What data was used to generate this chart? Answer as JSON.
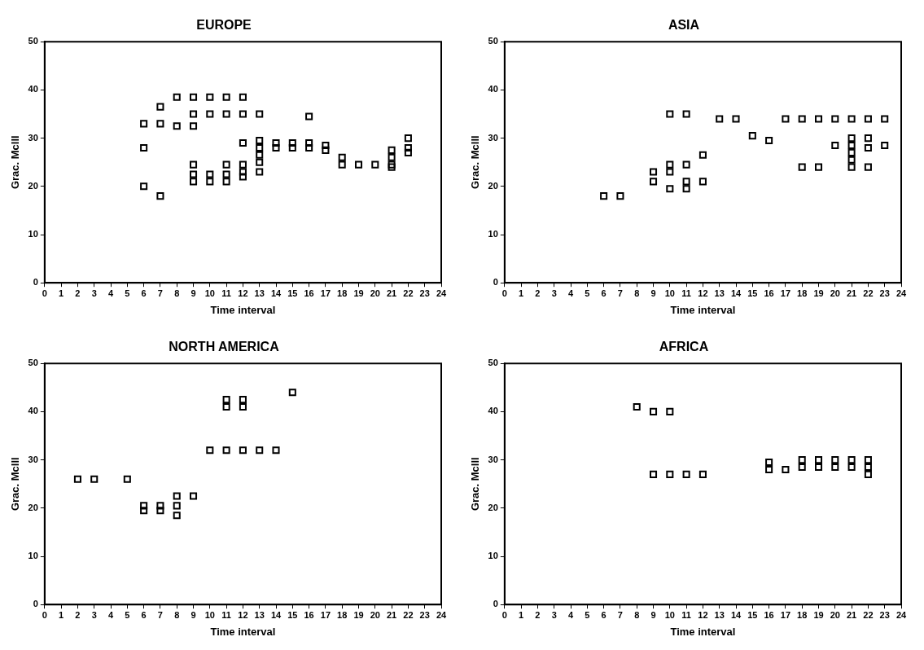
{
  "chart_data": [
    {
      "type": "scatter",
      "title": "EUROPE",
      "xlabel": "Time interval",
      "ylabel": "Grac. Mclll",
      "marker": "square",
      "grid": false,
      "legend": false,
      "xlim": [
        0,
        24
      ],
      "xticks": [
        0,
        1,
        2,
        3,
        4,
        5,
        6,
        7,
        8,
        9,
        10,
        11,
        12,
        13,
        14,
        15,
        16,
        17,
        18,
        19,
        20,
        21,
        22,
        23,
        24
      ],
      "ylim": [
        0,
        50
      ],
      "yticks": [
        0,
        10,
        20,
        30,
        40,
        50
      ],
      "series": [
        {
          "color": "#000000",
          "x": [
            6,
            6,
            6,
            7,
            7,
            7,
            8,
            8,
            9,
            9,
            9,
            9,
            9,
            9,
            10,
            10,
            10,
            10,
            11,
            11,
            11,
            11,
            11,
            12,
            12,
            12,
            12,
            12,
            12,
            13,
            13,
            13,
            13,
            13,
            13,
            14,
            14,
            15,
            15,
            16,
            16,
            16,
            17,
            17,
            18,
            18,
            19,
            20,
            21,
            21,
            21,
            21,
            22,
            22,
            22
          ],
          "values": [
            33,
            28,
            20,
            36.5,
            33,
            18,
            38.5,
            32.5,
            38.5,
            35,
            32.5,
            24.5,
            22.5,
            21,
            38.5,
            35,
            22.5,
            21,
            38.5,
            35,
            24.5,
            22.5,
            21,
            38.5,
            35,
            29,
            24.5,
            23,
            22,
            35,
            29.5,
            28,
            26.5,
            25,
            23,
            29,
            28,
            29,
            28,
            34.5,
            29,
            28,
            28.5,
            27.5,
            26,
            24.5,
            24.5,
            24.5,
            27.5,
            26,
            24.5,
            24,
            30,
            28,
            27
          ]
        }
      ]
    },
    {
      "type": "scatter",
      "title": "ASIA",
      "xlabel": "Time interval",
      "ylabel": "Grac. Mclll",
      "marker": "square",
      "grid": false,
      "legend": false,
      "xlim": [
        0,
        24
      ],
      "xticks": [
        0,
        1,
        2,
        3,
        4,
        5,
        6,
        7,
        8,
        9,
        10,
        11,
        12,
        13,
        14,
        15,
        16,
        17,
        18,
        19,
        20,
        21,
        22,
        23,
        24
      ],
      "ylim": [
        0,
        50
      ],
      "yticks": [
        0,
        10,
        20,
        30,
        40,
        50
      ],
      "series": [
        {
          "color": "#000000",
          "x": [
            6,
            7,
            9,
            9,
            10,
            10,
            10,
            10,
            11,
            11,
            11,
            11,
            12,
            12,
            13,
            14,
            15,
            16,
            17,
            18,
            18,
            19,
            19,
            20,
            20,
            21,
            21,
            21,
            21,
            21,
            21,
            22,
            22,
            22,
            22,
            23,
            23
          ],
          "values": [
            18,
            18,
            23,
            21,
            35,
            24.5,
            23,
            19.5,
            35,
            24.5,
            21,
            19.5,
            26.5,
            21,
            34,
            34,
            30.5,
            29.5,
            34,
            34,
            24,
            34,
            24,
            34,
            28.5,
            34,
            30,
            28.5,
            27,
            25.5,
            24,
            34,
            30,
            28,
            24,
            34,
            28.5
          ]
        }
      ]
    },
    {
      "type": "scatter",
      "title": "NORTH AMERICA",
      "xlabel": "Time interval",
      "ylabel": "Grac. Mclll",
      "marker": "square",
      "grid": false,
      "legend": false,
      "xlim": [
        0,
        24
      ],
      "xticks": [
        0,
        1,
        2,
        3,
        4,
        5,
        6,
        7,
        8,
        9,
        10,
        11,
        12,
        13,
        14,
        15,
        16,
        17,
        18,
        19,
        20,
        21,
        22,
        23,
        24
      ],
      "ylim": [
        0,
        50
      ],
      "yticks": [
        0,
        10,
        20,
        30,
        40,
        50
      ],
      "series": [
        {
          "color": "#000000",
          "x": [
            2,
            3,
            5,
            6,
            6,
            7,
            7,
            8,
            8,
            8,
            9,
            10,
            11,
            11,
            11,
            12,
            12,
            12,
            13,
            14,
            15
          ],
          "values": [
            26,
            26,
            26,
            20.5,
            19.5,
            20.5,
            19.5,
            22.5,
            20.5,
            18.5,
            22.5,
            32,
            42.5,
            41,
            32,
            42.5,
            41,
            32,
            32,
            32,
            44
          ]
        }
      ]
    },
    {
      "type": "scatter",
      "title": "AFRICA",
      "xlabel": "Time interval",
      "ylabel": "Grac. Mclll",
      "marker": "square",
      "grid": false,
      "legend": false,
      "xlim": [
        0,
        24
      ],
      "xticks": [
        0,
        1,
        2,
        3,
        4,
        5,
        6,
        7,
        8,
        9,
        10,
        11,
        12,
        13,
        14,
        15,
        16,
        17,
        18,
        19,
        20,
        21,
        22,
        23,
        24
      ],
      "ylim": [
        0,
        50
      ],
      "yticks": [
        0,
        10,
        20,
        30,
        40,
        50
      ],
      "series": [
        {
          "color": "#000000",
          "x": [
            8,
            9,
            9,
            10,
            10,
            11,
            12,
            16,
            16,
            17,
            18,
            18,
            19,
            19,
            20,
            20,
            21,
            21,
            22,
            22,
            22
          ],
          "values": [
            41,
            40,
            27,
            40,
            27,
            27,
            27,
            29.5,
            28,
            28,
            30,
            28.5,
            30,
            28.5,
            30,
            28.5,
            30,
            28.5,
            30,
            28.5,
            27
          ]
        }
      ]
    }
  ]
}
